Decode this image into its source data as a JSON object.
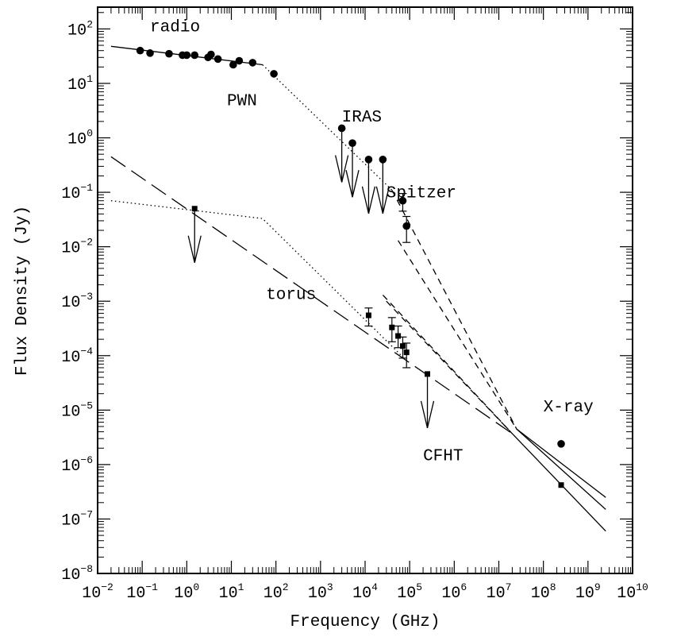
{
  "chart_data": {
    "type": "scatter",
    "xlabel": "Frequency (GHz)",
    "ylabel": "Flux Density (Jy)",
    "xscale": "log",
    "yscale": "log",
    "xlim_exp": [
      -2,
      10
    ],
    "ylim_exp": [
      -8,
      2.4
    ],
    "x_tick_exponents": [
      -2,
      -1,
      0,
      1,
      2,
      3,
      4,
      5,
      6,
      7,
      8,
      9,
      10
    ],
    "y_tick_exponents": [
      -8,
      -7,
      -6,
      -5,
      -4,
      -3,
      -2,
      -1,
      0,
      1,
      2
    ],
    "tick_base": "10",
    "grid": false,
    "annotations": [
      {
        "text": "radio",
        "x": 0.15,
        "y": 90
      },
      {
        "text": "PWN",
        "x": 8,
        "y": 4
      },
      {
        "text": "IRAS",
        "x": 3000,
        "y": 2.0
      },
      {
        "text": "Spitzer",
        "x": 30000,
        "y": 0.08
      },
      {
        "text": "torus",
        "x": 60,
        "y": 0.0011
      },
      {
        "text": "X-ray",
        "x": 100000000,
        "y": 9.5e-06
      },
      {
        "text": "CFHT",
        "x": 200000,
        "y": 1.2e-06
      }
    ],
    "series": [
      {
        "marker": "circle",
        "points": [
          {
            "x": 0.09,
            "y": 40
          },
          {
            "x": 0.15,
            "y": 36
          },
          {
            "x": 0.4,
            "y": 35
          },
          {
            "x": 0.8,
            "y": 33
          },
          {
            "x": 1.0,
            "y": 33
          },
          {
            "x": 1.5,
            "y": 33
          },
          {
            "x": 3,
            "y": 30
          },
          {
            "x": 3.5,
            "y": 34
          },
          {
            "x": 5,
            "y": 28
          },
          {
            "x": 11,
            "y": 22
          },
          {
            "x": 15,
            "y": 26
          },
          {
            "x": 30,
            "y": 24
          },
          {
            "x": 90,
            "y": 15
          },
          {
            "x": 3000,
            "y": 1.5,
            "upper_limit": true
          },
          {
            "x": 5200,
            "y": 0.8,
            "upper_limit": true
          },
          {
            "x": 12000,
            "y": 0.4,
            "upper_limit": true
          },
          {
            "x": 25000,
            "y": 0.4,
            "upper_limit": true
          },
          {
            "x": 70000,
            "y": 0.07,
            "yerr": [
              0.045,
              0.095
            ]
          },
          {
            "x": 85000,
            "y": 0.024,
            "yerr": [
              0.012,
              0.036
            ]
          },
          {
            "x": 250000000,
            "y": 2.4e-06
          }
        ]
      },
      {
        "marker": "square",
        "points": [
          {
            "x": 1.5,
            "y": 0.05,
            "upper_limit": true
          },
          {
            "x": 12000,
            "y": 0.00055,
            "yerr": [
              0.00035,
              0.00075
            ]
          },
          {
            "x": 40000,
            "y": 0.00033,
            "yerr": [
              0.00018,
              0.0005
            ]
          },
          {
            "x": 55000,
            "y": 0.00023,
            "yerr": [
              0.00014,
              0.00035
            ]
          },
          {
            "x": 70000,
            "y": 0.00015,
            "yerr": [
              9e-05,
              0.00022
            ]
          },
          {
            "x": 85000,
            "y": 0.000115,
            "yerr": [
              6e-05,
              0.00017
            ]
          },
          {
            "x": 250000,
            "y": 4.6e-05,
            "upper_limit": true
          },
          {
            "x": 250000000,
            "y": 4.2e-07
          }
        ]
      }
    ],
    "model_lines": [
      {
        "style": "solid",
        "points": [
          [
            0.02,
            48
          ],
          [
            50,
            22
          ]
        ]
      },
      {
        "style": "dotted",
        "points": [
          [
            50,
            22
          ],
          [
            40000,
            0.11
          ]
        ]
      },
      {
        "style": "short-dashed",
        "points": [
          [
            40000,
            0.11
          ],
          [
            25000000,
            4.5e-06
          ]
        ]
      },
      {
        "style": "solid",
        "points": [
          [
            25000000,
            4.5e-06
          ],
          [
            2500000000,
            2.5e-07
          ]
        ]
      },
      {
        "style": "short-dashed",
        "points": [
          [
            55000,
            0.013
          ],
          [
            25000000,
            4.5e-06
          ]
        ]
      },
      {
        "style": "solid",
        "points": [
          [
            25000000,
            4.5e-06
          ],
          [
            2500000000,
            1.5e-07
          ]
        ]
      },
      {
        "style": "long-dashed",
        "points": [
          [
            0.02,
            0.45
          ],
          [
            20000000,
            3.7e-06
          ]
        ]
      },
      {
        "style": "solid",
        "points": [
          [
            20000000,
            3.7e-06
          ],
          [
            2500000000,
            6e-08
          ]
        ]
      },
      {
        "style": "dotted",
        "points": [
          [
            0.02,
            0.07
          ],
          [
            50,
            0.033
          ],
          [
            80000,
            8.5e-05
          ]
        ]
      },
      {
        "style": "short-dashed",
        "points": [
          [
            25000,
            0.0013
          ],
          [
            20000000,
            3.7e-06
          ]
        ]
      },
      {
        "style": "short-dashed",
        "points": [
          [
            30000,
            0.001
          ],
          [
            20000000,
            3.7e-06
          ]
        ]
      }
    ]
  }
}
